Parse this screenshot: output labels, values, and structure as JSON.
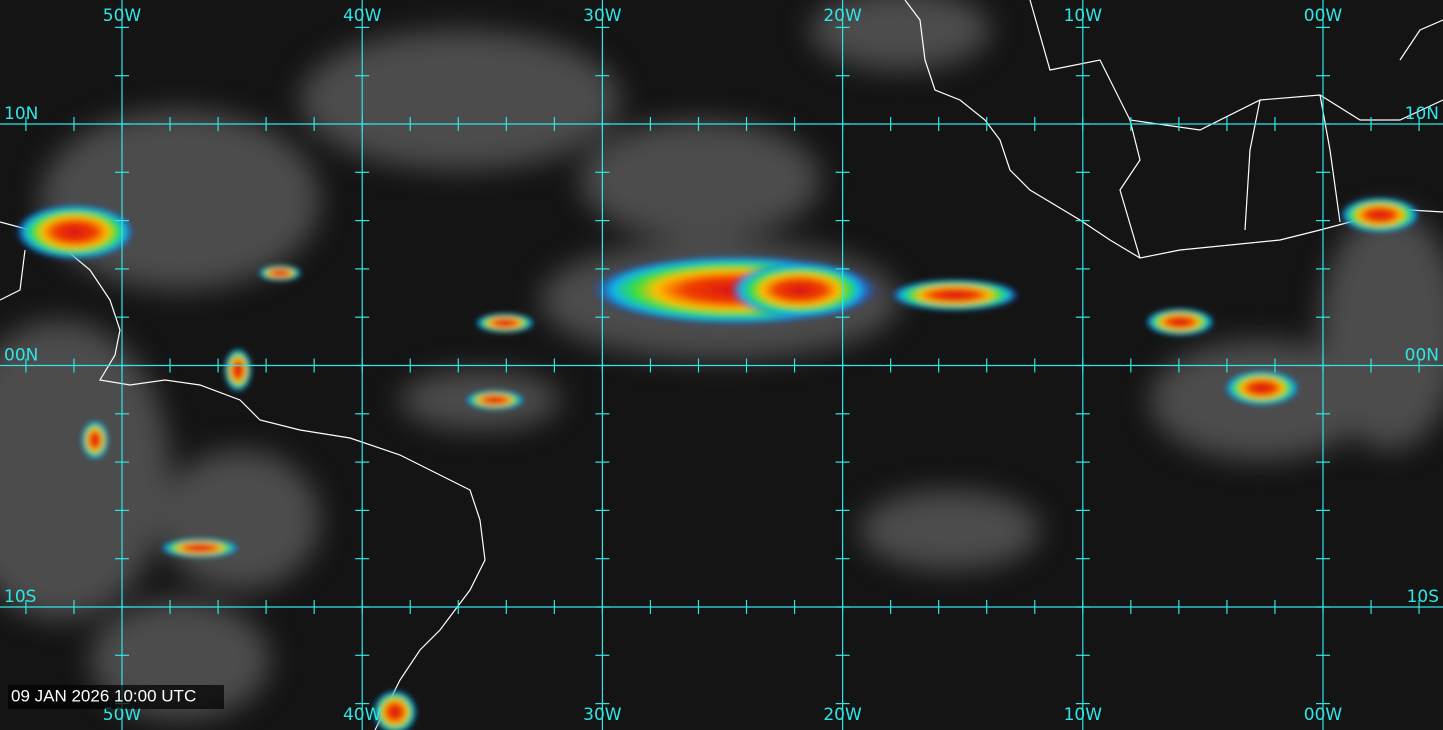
{
  "map": {
    "lon_labels": [
      "50W",
      "40W",
      "30W",
      "20W",
      "10W",
      "00W"
    ],
    "lat_labels": [
      "10N",
      "00N",
      "10S"
    ],
    "timestamp": "09 JAN 2026 10:00 UTC"
  }
}
